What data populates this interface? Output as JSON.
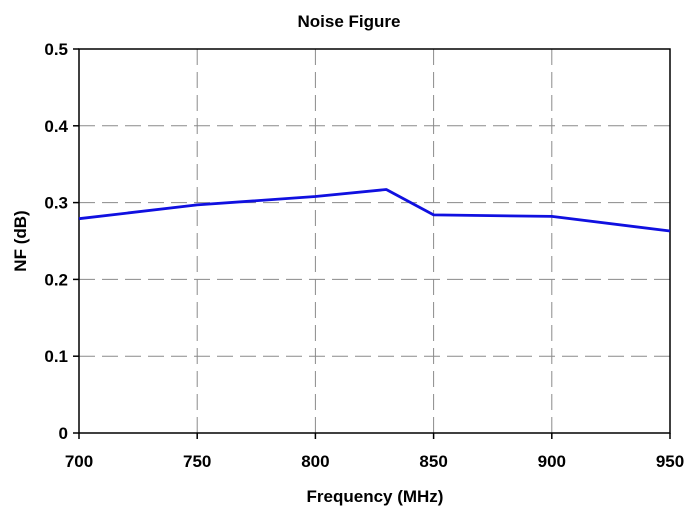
{
  "chart_data": {
    "type": "line",
    "title": "Noise Figure",
    "xlabel": "Frequency (MHz)",
    "ylabel": "NF (dB)",
    "xlim": [
      700,
      950
    ],
    "ylim": [
      0,
      0.5
    ],
    "x_ticks": [
      "700",
      "750",
      "800",
      "850",
      "900",
      "950"
    ],
    "y_ticks": [
      "0",
      "0.1",
      "0.2",
      "0.3",
      "0.4",
      "0.5"
    ],
    "grid": true,
    "series": [
      {
        "x": [
          700,
          750,
          800,
          830,
          850,
          900,
          950
        ],
        "y": [
          0.279,
          0.297,
          0.308,
          0.317,
          0.284,
          0.282,
          0.263
        ],
        "color": "#1010e0"
      }
    ]
  }
}
